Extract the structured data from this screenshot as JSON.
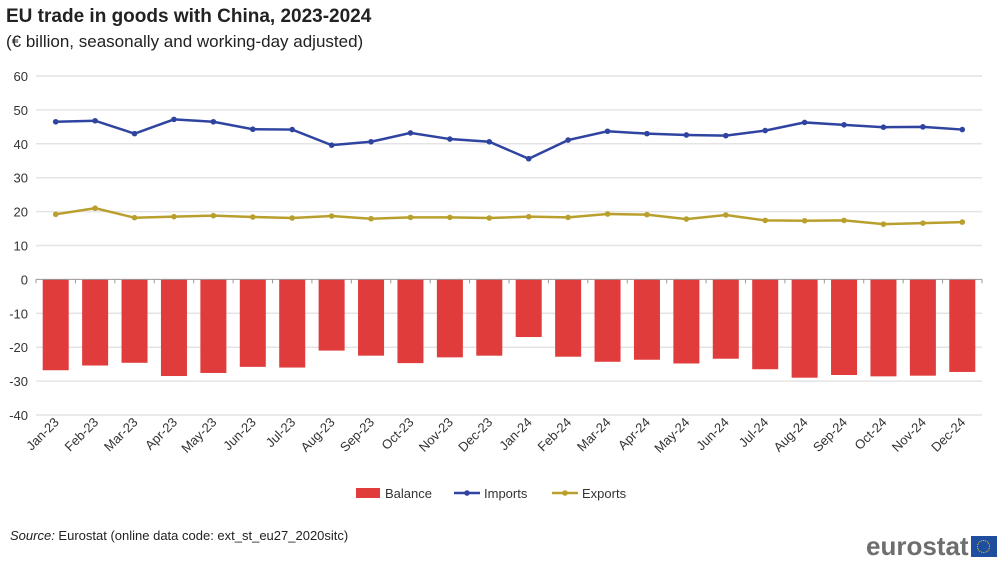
{
  "title": "EU trade in goods with China, 2023-2024",
  "subtitle": "(€ billion, seasonally and working-day adjusted)",
  "source_label": "Source:",
  "source_text": " Eurostat (online data code: ext_st_eu27_2020sitc)",
  "logo": "eurostat",
  "chart_data": {
    "type": "bar+line",
    "title": "EU trade in goods with China, 2023-2024",
    "ylim": [
      -40,
      60
    ],
    "yticks": [
      60,
      50,
      40,
      30,
      20,
      10,
      0,
      -10,
      -20,
      -30,
      -40
    ],
    "grid": true,
    "legend_position": "bottom",
    "categories": [
      "Jan-23",
      "Feb-23",
      "Mar-23",
      "Apr-23",
      "May-23",
      "Jun-23",
      "Jul-23",
      "Aug-23",
      "Sep-23",
      "Oct-23",
      "Nov-23",
      "Dec-23",
      "Jan-24",
      "Feb-24",
      "Mar-24",
      "Apr-24",
      "May-24",
      "Jun-24",
      "Jul-24",
      "Aug-24",
      "Sep-24",
      "Oct-24",
      "Nov-24",
      "Dec-24"
    ],
    "series": [
      {
        "name": "Balance",
        "type": "bar",
        "color": "#e03c3c",
        "values": [
          -26.8,
          -25.4,
          -24.6,
          -28.5,
          -27.6,
          -25.8,
          -26.0,
          -21.0,
          -22.5,
          -24.7,
          -23.0,
          -22.5,
          -17.0,
          -22.8,
          -24.3,
          -23.7,
          -24.8,
          -23.4,
          -26.5,
          -29.0,
          -28.2,
          -28.6,
          -28.4,
          -27.3
        ]
      },
      {
        "name": "Imports",
        "type": "line",
        "color": "#2f44a0",
        "values": [
          46.5,
          46.8,
          43.0,
          47.2,
          46.5,
          44.3,
          44.2,
          39.6,
          40.6,
          43.2,
          41.4,
          40.6,
          35.6,
          41.1,
          43.7,
          43.0,
          42.6,
          42.4,
          43.9,
          46.3,
          45.6,
          44.9,
          45.0,
          44.2
        ]
      },
      {
        "name": "Exports",
        "type": "line",
        "color": "#b9a02e",
        "values": [
          19.2,
          21.0,
          18.2,
          18.5,
          18.8,
          18.4,
          18.1,
          18.7,
          17.9,
          18.3,
          18.3,
          18.1,
          18.5,
          18.3,
          19.3,
          19.1,
          17.8,
          19.0,
          17.4,
          17.3,
          17.4,
          16.3,
          16.6,
          16.9
        ]
      }
    ]
  }
}
